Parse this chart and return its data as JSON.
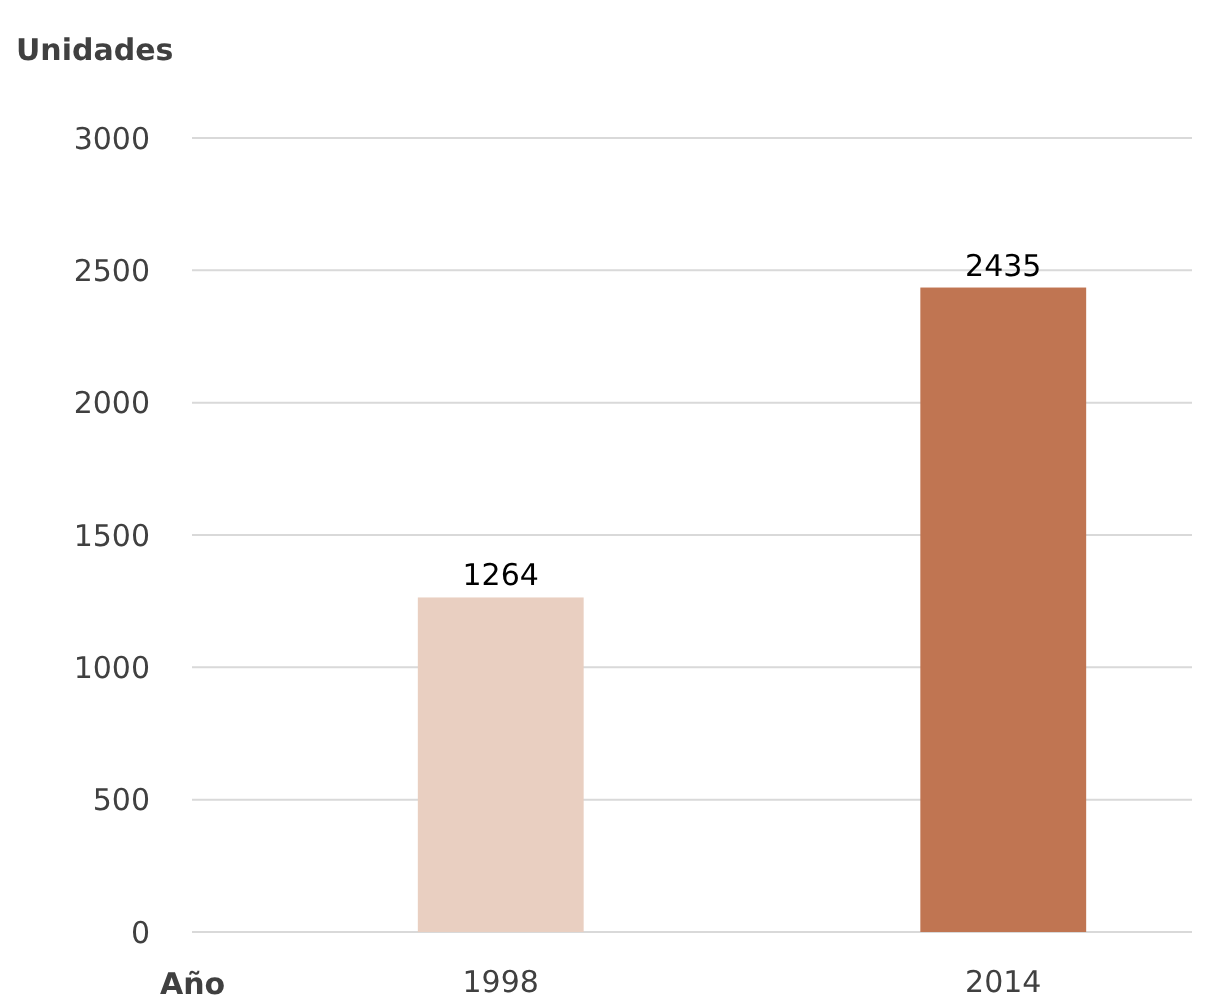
{
  "chart_data": {
    "type": "bar",
    "ylabel": "Unidades",
    "xlabel": "Año",
    "categories": [
      "1998",
      "2014"
    ],
    "values": [
      1264,
      2435
    ],
    "colors": [
      "#e9cfc1",
      "#c07552"
    ],
    "ylim": [
      0,
      3000
    ],
    "yticks": [
      0,
      500,
      1000,
      1500,
      2000,
      2500,
      3000
    ],
    "grid": "y",
    "data_labels": true
  }
}
